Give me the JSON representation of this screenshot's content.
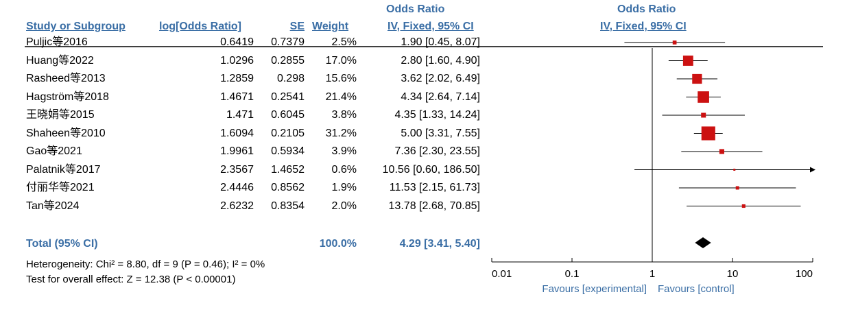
{
  "header": {
    "group1": "Odds Ratio",
    "group2": "Odds Ratio",
    "col_study": "Study or Subgroup",
    "col_log": "log[Odds Ratio]",
    "col_se": "SE",
    "col_weight": "Weight",
    "col_ci": "IV, Fixed, 95% CI",
    "col_plot": "IV, Fixed, 95% CI"
  },
  "rows": [
    {
      "study": "Puljic等2016",
      "log": "0.6419",
      "se": "0.7379",
      "weight": "2.5%",
      "ci": "1.90 [0.45, 8.07]"
    },
    {
      "study": "Huang等2022",
      "log": "1.0296",
      "se": "0.2855",
      "weight": "17.0%",
      "ci": "2.80 [1.60, 4.90]"
    },
    {
      "study": "Rasheed等2013",
      "log": "1.2859",
      "se": "0.298",
      "weight": "15.6%",
      "ci": "3.62 [2.02, 6.49]"
    },
    {
      "study": "Hagström等2018",
      "log": "1.4671",
      "se": "0.2541",
      "weight": "21.4%",
      "ci": "4.34 [2.64, 7.14]"
    },
    {
      "study": "王晓娟等2015",
      "log": "1.471",
      "se": "0.6045",
      "weight": "3.8%",
      "ci": "4.35 [1.33, 14.24]"
    },
    {
      "study": "Shaheen等2010",
      "log": "1.6094",
      "se": "0.2105",
      "weight": "31.2%",
      "ci": "5.00 [3.31, 7.55]"
    },
    {
      "study": "Gao等2021",
      "log": "1.9961",
      "se": "0.5934",
      "weight": "3.9%",
      "ci": "7.36 [2.30, 23.55]"
    },
    {
      "study": "Palatnik等2017",
      "log": "2.3567",
      "se": "1.4652",
      "weight": "0.6%",
      "ci": "10.56 [0.60, 186.50]"
    },
    {
      "study": "付丽华等2021",
      "log": "2.4446",
      "se": "0.8562",
      "weight": "1.9%",
      "ci": "11.53 [2.15, 61.73]"
    },
    {
      "study": "Tan等2024",
      "log": "2.6232",
      "se": "0.8354",
      "weight": "2.0%",
      "ci": "13.78 [2.68, 70.85]"
    }
  ],
  "total": {
    "label": "Total (95% CI)",
    "weight": "100.0%",
    "ci": "4.29 [3.41, 5.40]"
  },
  "footer": {
    "heterogeneity": "Heterogeneity: Chi² = 8.80, df = 9 (P = 0.46); I² = 0%",
    "overall": "Test for overall effect: Z = 12.38 (P < 0.00001)"
  },
  "colors": {
    "marker": "#cc1111",
    "header": "#3a6ea5",
    "line": "#000000"
  },
  "chart_data": {
    "type": "forest",
    "xscale": "log",
    "xlim": [
      0.01,
      100
    ],
    "xticks": [
      0.01,
      0.1,
      1,
      10,
      100
    ],
    "xtick_labels": [
      "0.01",
      "0.1",
      "1",
      "10",
      "100"
    ],
    "null_line": 1,
    "favours_left": "Favours [experimental]",
    "favours_right": "Favours [control]",
    "studies": [
      {
        "or": 1.9,
        "lo": 0.45,
        "hi": 8.07,
        "weight": 2.5
      },
      {
        "or": 2.8,
        "lo": 1.6,
        "hi": 4.9,
        "weight": 17.0
      },
      {
        "or": 3.62,
        "lo": 2.02,
        "hi": 6.49,
        "weight": 15.6
      },
      {
        "or": 4.34,
        "lo": 2.64,
        "hi": 7.14,
        "weight": 21.4
      },
      {
        "or": 4.35,
        "lo": 1.33,
        "hi": 14.24,
        "weight": 3.8
      },
      {
        "or": 5.0,
        "lo": 3.31,
        "hi": 7.55,
        "weight": 31.2
      },
      {
        "or": 7.36,
        "lo": 2.3,
        "hi": 23.55,
        "weight": 3.9
      },
      {
        "or": 10.56,
        "lo": 0.6,
        "hi": 186.5,
        "weight": 0.6
      },
      {
        "or": 11.53,
        "lo": 2.15,
        "hi": 61.73,
        "weight": 1.9
      },
      {
        "or": 13.78,
        "lo": 2.68,
        "hi": 70.85,
        "weight": 2.0
      }
    ],
    "pooled": {
      "or": 4.29,
      "lo": 3.41,
      "hi": 5.4
    }
  }
}
